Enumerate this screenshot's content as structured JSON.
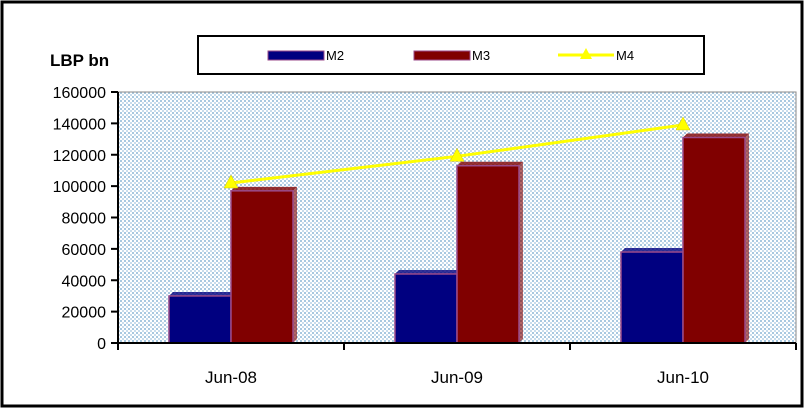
{
  "chart_data": {
    "type": "bar",
    "ylabel": "LBP bn",
    "categories": [
      "Jun-08",
      "Jun-09",
      "Jun-10"
    ],
    "ylim": [
      0,
      160000
    ],
    "yticks": [
      0,
      20000,
      40000,
      60000,
      80000,
      100000,
      120000,
      140000,
      160000
    ],
    "grid": "dotted background",
    "legend_position": "top",
    "series": [
      {
        "name": "M2",
        "kind": "bar",
        "color": "#000080",
        "values": [
          30000,
          44000,
          58000
        ]
      },
      {
        "name": "M3",
        "kind": "bar",
        "color": "#800000",
        "values": [
          97000,
          113000,
          131000
        ]
      },
      {
        "name": "M4",
        "kind": "line",
        "marker": "triangle",
        "color": "#ffff00",
        "values": [
          102000,
          119000,
          139000
        ]
      }
    ]
  }
}
